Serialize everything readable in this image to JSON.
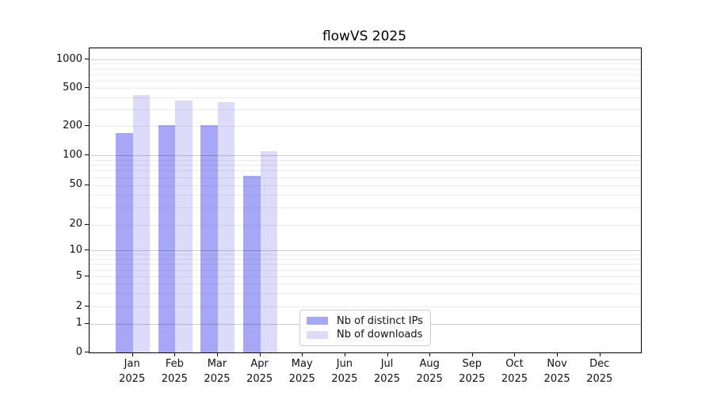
{
  "title": "flowVS 2025",
  "chart_data": {
    "type": "bar",
    "title": "flowVS 2025",
    "categories": [
      "Jan 2025",
      "Feb 2025",
      "Mar 2025",
      "Apr 2025",
      "May 2025",
      "Jun 2025",
      "Jul 2025",
      "Aug 2025",
      "Sep 2025",
      "Oct 2025",
      "Nov 2025",
      "Dec 2025"
    ],
    "series": [
      {
        "name": "Nb of distinct IPs",
        "color": "#a7a7f7",
        "values": [
          170,
          205,
          205,
          62,
          0,
          0,
          0,
          0,
          0,
          0,
          0,
          0
        ]
      },
      {
        "name": "Nb of downloads",
        "color": "#dcdcfa",
        "values": [
          425,
          370,
          355,
          110,
          0,
          0,
          0,
          0,
          0,
          0,
          0,
          0
        ]
      }
    ],
    "xlabel": "",
    "ylabel": "",
    "yscale": "symlog",
    "yticks": [
      0,
      1,
      2,
      5,
      10,
      20,
      50,
      100,
      200,
      500,
      1000
    ],
    "ylim": [
      0,
      1300
    ],
    "grid": true,
    "legend_position": "lower-center-inside"
  },
  "legend": {
    "items": [
      {
        "label": "Nb of distinct IPs",
        "color": "#a7a7f7"
      },
      {
        "label": "Nb of downloads",
        "color": "#dcdcfa"
      }
    ]
  },
  "colors": {
    "bar_dark": "#a7a7f7",
    "bar_light": "#dcdcfa",
    "major_grid": "#cccccc",
    "minor_grid": "#ececec",
    "spine": "#000000"
  }
}
